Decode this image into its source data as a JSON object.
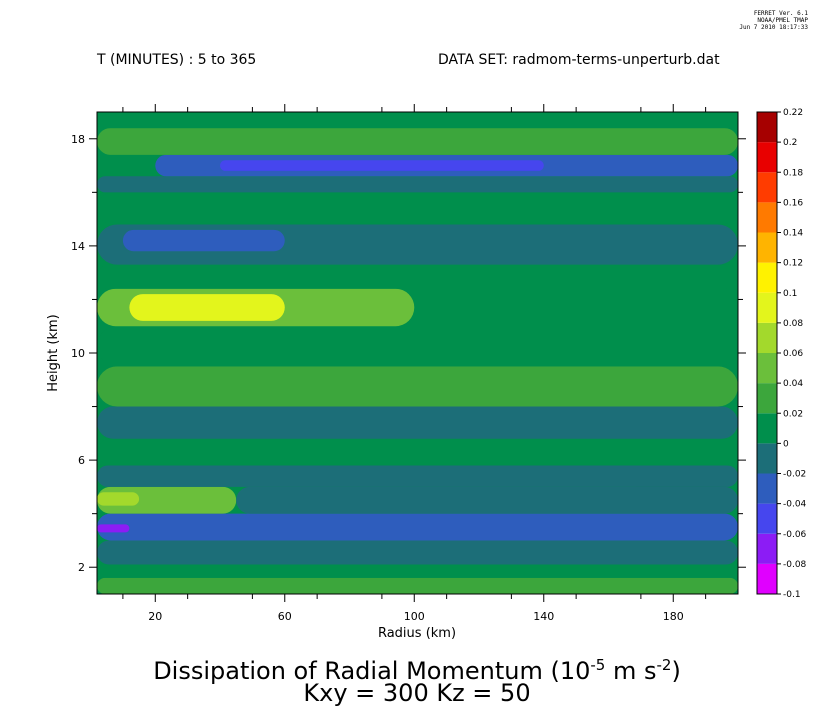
{
  "header": {
    "stamp_line1": "FERRET Ver. 6.1",
    "stamp_line2": "NOAA/PMEL TMAP",
    "stamp_line3": "Jun 7 2010 18:17:33",
    "time_range": "T (MINUTES) : 5 to 365",
    "data_set": "DATA SET: radmom-terms-unperturb.dat"
  },
  "chart_data": {
    "type": "heatmap",
    "title_main": "Dissipation of Radial Momentum (10",
    "title_exp1": "-5",
    "title_unit": " m s",
    "title_exp2": "-2",
    "title_close": ")",
    "subtitle": "Kxy = 300 Kz = 50",
    "xlabel": "Radius (km)",
    "ylabel": "Height (km)",
    "xlim": [
      2,
      200
    ],
    "ylim": [
      1,
      19
    ],
    "xticks": [
      20,
      60,
      100,
      140,
      180
    ],
    "yticks": [
      2,
      6,
      10,
      14,
      18
    ],
    "colorbar_levels": [
      "-0.1",
      "-0.08",
      "-0.06",
      "-0.04",
      "-0.02",
      "0",
      "0.02",
      "0.04",
      "0.06",
      "0.08",
      "0.1",
      "0.12",
      "0.14",
      "0.16",
      "0.18",
      "0.2",
      "0.22"
    ],
    "colorbar_colors": [
      "#e000ff",
      "#8c1cf5",
      "#4646ee",
      "#2e5dbd",
      "#1c6e78",
      "#008f4c",
      "#3ca63c",
      "#6bbf3b",
      "#a3d92c",
      "#e3f51c",
      "#fff200",
      "#ffb400",
      "#ff7a00",
      "#ff3c00",
      "#e80000",
      "#a60000"
    ],
    "bands": [
      {
        "y": [
          1.0,
          1.6
        ],
        "v": 0.02,
        "r": [
          2,
          200
        ]
      },
      {
        "y": [
          1.6,
          2.1
        ],
        "v": 0.0,
        "r": [
          2,
          200
        ]
      },
      {
        "y": [
          2.1,
          3.0
        ],
        "v": -0.02,
        "r": [
          2,
          200
        ]
      },
      {
        "y": [
          3.0,
          4.0
        ],
        "v": -0.04,
        "r": [
          2,
          200
        ]
      },
      {
        "y": [
          3.3,
          3.6
        ],
        "v": -0.08,
        "r": [
          2,
          12
        ]
      },
      {
        "y": [
          4.0,
          5.0
        ],
        "v": 0.04,
        "r": [
          2,
          45
        ]
      },
      {
        "y": [
          4.0,
          5.0
        ],
        "v": -0.02,
        "r": [
          45,
          200
        ]
      },
      {
        "y": [
          4.3,
          4.8
        ],
        "v": 0.06,
        "r": [
          2,
          15
        ]
      },
      {
        "y": [
          5.0,
          5.8
        ],
        "v": -0.02,
        "r": [
          2,
          200
        ]
      },
      {
        "y": [
          5.8,
          6.8
        ],
        "v": 0.0,
        "r": [
          2,
          200
        ]
      },
      {
        "y": [
          6.8,
          8.0
        ],
        "v": -0.02,
        "r": [
          2,
          200
        ]
      },
      {
        "y": [
          8.0,
          9.5
        ],
        "v": 0.02,
        "r": [
          2,
          200
        ]
      },
      {
        "y": [
          9.5,
          11.0
        ],
        "v": 0.0,
        "r": [
          2,
          200
        ]
      },
      {
        "y": [
          11.0,
          12.4
        ],
        "v": 0.04,
        "r": [
          2,
          100
        ]
      },
      {
        "y": [
          11.2,
          12.2
        ],
        "v": 0.08,
        "r": [
          12,
          60
        ]
      },
      {
        "y": [
          12.4,
          13.3
        ],
        "v": 0.0,
        "r": [
          2,
          200
        ]
      },
      {
        "y": [
          13.3,
          14.8
        ],
        "v": -0.02,
        "r": [
          2,
          200
        ]
      },
      {
        "y": [
          13.8,
          14.6
        ],
        "v": -0.04,
        "r": [
          10,
          60
        ]
      },
      {
        "y": [
          14.8,
          16.0
        ],
        "v": 0.0,
        "r": [
          2,
          200
        ]
      },
      {
        "y": [
          16.0,
          16.6
        ],
        "v": -0.02,
        "r": [
          2,
          200
        ]
      },
      {
        "y": [
          16.6,
          17.4
        ],
        "v": -0.04,
        "r": [
          20,
          200
        ]
      },
      {
        "y": [
          16.8,
          17.2
        ],
        "v": -0.06,
        "r": [
          40,
          140
        ]
      },
      {
        "y": [
          17.4,
          18.4
        ],
        "v": 0.02,
        "r": [
          2,
          200
        ]
      },
      {
        "y": [
          18.4,
          19.0
        ],
        "v": 0.0,
        "r": [
          2,
          200
        ]
      }
    ]
  }
}
